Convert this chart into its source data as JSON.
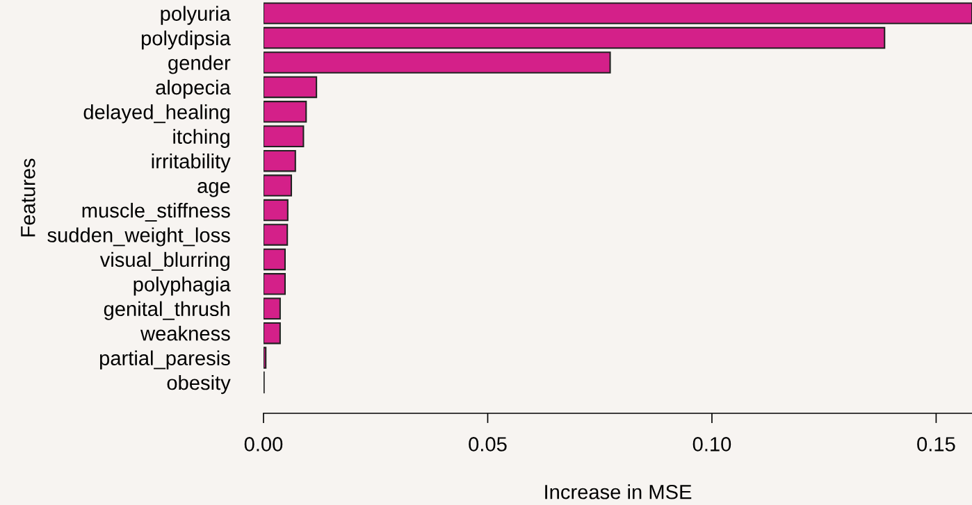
{
  "chart_data": {
    "type": "bar",
    "orientation": "horizontal",
    "xlabel": "Increase in MSE",
    "ylabel": "Features",
    "categories": [
      "polyuria",
      "polydipsia",
      "gender",
      "alopecia",
      "delayed_healing",
      "itching",
      "irritability",
      "age",
      "muscle_stiffness",
      "sudden_weight_loss",
      "visual_blurring",
      "polyphagia",
      "genital_thrush",
      "weakness",
      "partial_paresis",
      "obesity"
    ],
    "values": [
      0.158,
      0.1385,
      0.0773,
      0.0118,
      0.0095,
      0.0089,
      0.0071,
      0.0062,
      0.0054,
      0.0053,
      0.0048,
      0.0048,
      0.0037,
      0.0037,
      0.0005,
      0.0001
    ],
    "color": "#d42089",
    "xlim": [
      0,
      0.158
    ],
    "xticks": [
      {
        "value": 0,
        "label": "0.00"
      },
      {
        "value": 0.05,
        "label": "0.05"
      },
      {
        "value": 0.1,
        "label": "0.10"
      },
      {
        "value": 0.15,
        "label": "0.15"
      }
    ],
    "grid": false,
    "legend": false
  }
}
